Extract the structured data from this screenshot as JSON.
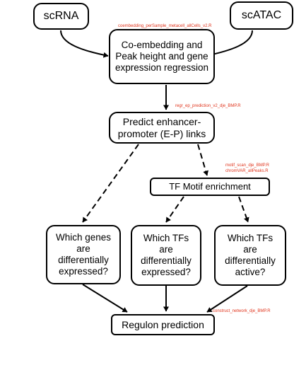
{
  "nodes": {
    "scrna": "scRNA",
    "scatac": "scATAC",
    "coembed": "Co-embedding and Peak height and gene expression regression",
    "predict": "Predict enhancer-promoter (E-P) links",
    "tf_motif": "TF Motif enrichment",
    "genes_de": "Which genes are differentially expressed?",
    "tfs_de": "Which TFs are differentially expressed?",
    "tfs_active": "Which TFs are differentially active?",
    "regulon": "Regulon prediction"
  },
  "scripts": {
    "coembed_script": "coembedding_perSample_metacell_allCells_v2.R",
    "regr_script": "regr_ep_prediction_v2_dje_BMP.R",
    "motif_script": "motif_scan_dje_BMP.R",
    "chromvar_script": "chromVAR_allPeaks.R",
    "network_script": "construct_network_dje_BMP.R"
  },
  "colors": {
    "script_text": "#e0341c",
    "border": "#000000"
  }
}
